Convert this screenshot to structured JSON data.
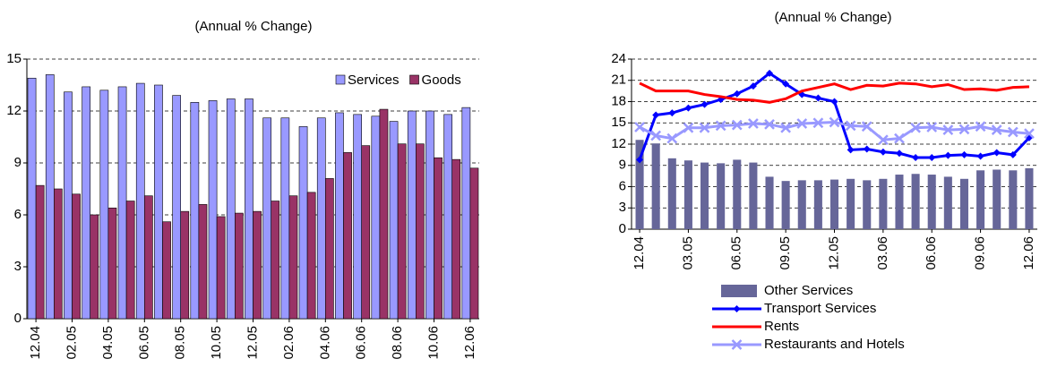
{
  "chart_data": [
    {
      "type": "bar",
      "title": "(Annual % Change)",
      "categories": [
        "12.04",
        null,
        "02.05",
        null,
        "04.05",
        null,
        "06.05",
        null,
        "08.05",
        null,
        "10.05",
        null,
        "12.05",
        null,
        "02.06",
        null,
        "04.06",
        null,
        "06.06",
        null,
        "08.06",
        null,
        "10.06",
        null,
        "12.06"
      ],
      "series": [
        {
          "name": "Services",
          "type": "bar",
          "color": "#9999ff",
          "values": [
            13.9,
            14.1,
            13.1,
            13.4,
            13.2,
            13.4,
            13.6,
            13.5,
            12.9,
            12.5,
            12.6,
            12.7,
            12.7,
            11.6,
            11.6,
            11.1,
            11.6,
            11.9,
            11.8,
            11.7,
            11.4,
            12.0,
            12.0,
            11.8,
            12.2
          ]
        },
        {
          "name": "Goods",
          "type": "bar",
          "color": "#993366",
          "values": [
            7.7,
            7.5,
            7.2,
            6.0,
            6.4,
            6.8,
            7.1,
            5.6,
            6.2,
            6.6,
            5.9,
            6.1,
            6.2,
            6.8,
            7.1,
            7.3,
            8.1,
            9.6,
            10.0,
            12.1,
            10.1,
            10.1,
            9.3,
            9.2,
            8.7
          ]
        }
      ],
      "ylim": [
        0,
        15
      ],
      "yticks": [
        0,
        3,
        6,
        9,
        12,
        15
      ],
      "grid": true,
      "legend": "top-right"
    },
    {
      "type": "combo",
      "title": "(Annual % Change)",
      "categories": [
        "12.04",
        null,
        null,
        "03.05",
        null,
        null,
        "06.05",
        null,
        null,
        "09.05",
        null,
        null,
        "12.05",
        null,
        null,
        "03.06",
        null,
        null,
        "06.06",
        null,
        null,
        "09.06",
        null,
        null,
        "12.06"
      ],
      "series": [
        {
          "name": "Other Services",
          "type": "bar",
          "color": "#666699",
          "values": [
            12.6,
            12.1,
            10.0,
            9.7,
            9.4,
            9.3,
            9.8,
            9.4,
            7.4,
            6.8,
            6.9,
            6.9,
            7.0,
            7.1,
            6.9,
            7.1,
            7.7,
            7.8,
            7.7,
            7.4,
            7.1,
            8.3,
            8.4,
            8.3,
            8.6
          ]
        },
        {
          "name": "Transport Services",
          "type": "line",
          "marker": "diamond",
          "color": "#0000ff",
          "values": [
            9.8,
            16.1,
            16.4,
            17.1,
            17.6,
            18.3,
            19.1,
            20.2,
            22.0,
            20.5,
            19.0,
            18.5,
            18.0,
            11.2,
            11.3,
            10.9,
            10.7,
            10.1,
            10.1,
            10.4,
            10.5,
            10.3,
            10.8,
            10.5,
            12.9
          ]
        },
        {
          "name": "Rents",
          "type": "line",
          "color": "#ff0000",
          "values": [
            20.6,
            19.5,
            19.5,
            19.5,
            19.0,
            18.7,
            18.3,
            18.2,
            17.9,
            18.4,
            19.5,
            20.0,
            20.5,
            19.7,
            20.3,
            20.2,
            20.6,
            20.5,
            20.1,
            20.4,
            19.7,
            19.8,
            19.6,
            20.0,
            20.1
          ]
        },
        {
          "name": "Restaurants and Hotels",
          "type": "line",
          "marker": "x",
          "color": "#9999ff",
          "values": [
            14.4,
            13.2,
            12.8,
            14.3,
            14.3,
            14.6,
            14.7,
            14.9,
            14.8,
            14.3,
            14.9,
            15.0,
            15.1,
            14.6,
            14.5,
            12.6,
            12.8,
            14.3,
            14.4,
            14.0,
            14.1,
            14.5,
            14.0,
            13.7,
            13.5
          ]
        }
      ],
      "ylim": [
        0,
        24
      ],
      "yticks": [
        0,
        3,
        6,
        9,
        12,
        15,
        18,
        21,
        24
      ],
      "grid": true,
      "legend": "bottom"
    }
  ]
}
